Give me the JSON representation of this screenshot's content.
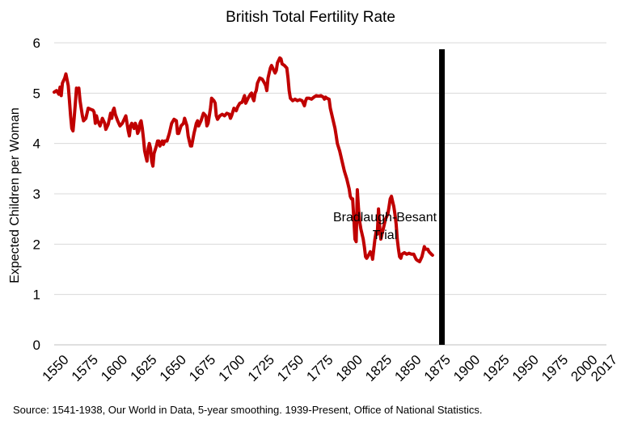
{
  "chart_data": {
    "type": "line",
    "title": "British Total Fertility Rate",
    "xlabel": "",
    "ylabel": "Expected Children per Woman",
    "xlim": [
      1547,
      2017
    ],
    "ylim": [
      0,
      6
    ],
    "grid": "horizontal",
    "x_ticks": [
      "1550",
      "1575",
      "1600",
      "1625",
      "1650",
      "1675",
      "1700",
      "1725",
      "1750",
      "1775",
      "1800",
      "1825",
      "1850",
      "1875",
      "1900",
      "1925",
      "1950",
      "1975",
      "2000",
      "2017"
    ],
    "y_ticks": [
      "0",
      "1",
      "2",
      "3",
      "4",
      "5",
      "6"
    ],
    "series": [
      {
        "color": "#c00000",
        "points": [
          [
            1547,
            5.02
          ],
          [
            1549,
            5.05
          ],
          [
            1551,
            4.98
          ],
          [
            1552,
            5.12
          ],
          [
            1553,
            4.95
          ],
          [
            1554,
            5.2
          ],
          [
            1556,
            5.3
          ],
          [
            1557,
            5.38
          ],
          [
            1559,
            5.15
          ],
          [
            1560,
            4.85
          ],
          [
            1561,
            4.55
          ],
          [
            1562,
            4.3
          ],
          [
            1563,
            4.25
          ],
          [
            1564,
            4.5
          ],
          [
            1565,
            4.8
          ],
          [
            1566,
            5.1
          ],
          [
            1567,
            5.05
          ],
          [
            1568,
            5.1
          ],
          [
            1569,
            4.85
          ],
          [
            1570,
            4.7
          ],
          [
            1571,
            4.55
          ],
          [
            1572,
            4.45
          ],
          [
            1574,
            4.5
          ],
          [
            1576,
            4.7
          ],
          [
            1578,
            4.68
          ],
          [
            1580,
            4.66
          ],
          [
            1581,
            4.62
          ],
          [
            1582,
            4.4
          ],
          [
            1583,
            4.55
          ],
          [
            1584,
            4.45
          ],
          [
            1586,
            4.35
          ],
          [
            1588,
            4.5
          ],
          [
            1590,
            4.4
          ],
          [
            1591,
            4.28
          ],
          [
            1593,
            4.38
          ],
          [
            1595,
            4.6
          ],
          [
            1596,
            4.5
          ],
          [
            1597,
            4.65
          ],
          [
            1598,
            4.7
          ],
          [
            1599,
            4.58
          ],
          [
            1601,
            4.45
          ],
          [
            1603,
            4.35
          ],
          [
            1605,
            4.4
          ],
          [
            1607,
            4.5
          ],
          [
            1608,
            4.55
          ],
          [
            1609,
            4.4
          ],
          [
            1610,
            4.25
          ],
          [
            1611,
            4.15
          ],
          [
            1612,
            4.35
          ],
          [
            1613,
            4.4
          ],
          [
            1615,
            4.3
          ],
          [
            1616,
            4.4
          ],
          [
            1617,
            4.35
          ],
          [
            1618,
            4.2
          ],
          [
            1619,
            4.25
          ],
          [
            1620,
            4.4
          ],
          [
            1621,
            4.45
          ],
          [
            1622,
            4.3
          ],
          [
            1623,
            4.1
          ],
          [
            1624,
            3.85
          ],
          [
            1625,
            3.75
          ],
          [
            1626,
            3.65
          ],
          [
            1627,
            3.9
          ],
          [
            1628,
            4.0
          ],
          [
            1629,
            3.9
          ],
          [
            1630,
            3.65
          ],
          [
            1631,
            3.55
          ],
          [
            1632,
            3.8
          ],
          [
            1634,
            3.95
          ],
          [
            1635,
            4.05
          ],
          [
            1636,
            4.05
          ],
          [
            1637,
            3.95
          ],
          [
            1638,
            4.0
          ],
          [
            1639,
            4.05
          ],
          [
            1640,
            3.98
          ],
          [
            1641,
            4.05
          ],
          [
            1643,
            4.05
          ],
          [
            1645,
            4.2
          ],
          [
            1647,
            4.4
          ],
          [
            1649,
            4.48
          ],
          [
            1651,
            4.45
          ],
          [
            1652,
            4.2
          ],
          [
            1653,
            4.2
          ],
          [
            1655,
            4.35
          ],
          [
            1657,
            4.4
          ],
          [
            1658,
            4.5
          ],
          [
            1660,
            4.35
          ],
          [
            1661,
            4.15
          ],
          [
            1662,
            4.05
          ],
          [
            1663,
            3.95
          ],
          [
            1664,
            3.95
          ],
          [
            1666,
            4.2
          ],
          [
            1667,
            4.3
          ],
          [
            1668,
            4.4
          ],
          [
            1669,
            4.45
          ],
          [
            1670,
            4.35
          ],
          [
            1672,
            4.45
          ],
          [
            1674,
            4.6
          ],
          [
            1676,
            4.55
          ],
          [
            1677,
            4.35
          ],
          [
            1678,
            4.4
          ],
          [
            1680,
            4.7
          ],
          [
            1681,
            4.9
          ],
          [
            1683,
            4.85
          ],
          [
            1684,
            4.8
          ],
          [
            1685,
            4.55
          ],
          [
            1686,
            4.48
          ],
          [
            1688,
            4.55
          ],
          [
            1690,
            4.58
          ],
          [
            1692,
            4.55
          ],
          [
            1694,
            4.6
          ],
          [
            1696,
            4.58
          ],
          [
            1697,
            4.5
          ],
          [
            1698,
            4.55
          ],
          [
            1700,
            4.7
          ],
          [
            1702,
            4.65
          ],
          [
            1703,
            4.72
          ],
          [
            1705,
            4.8
          ],
          [
            1707,
            4.82
          ],
          [
            1709,
            4.95
          ],
          [
            1710,
            4.8
          ],
          [
            1712,
            4.9
          ],
          [
            1714,
            4.98
          ],
          [
            1715,
            5.0
          ],
          [
            1716,
            4.9
          ],
          [
            1717,
            4.85
          ],
          [
            1718,
            5.0
          ],
          [
            1719,
            5.05
          ],
          [
            1720,
            5.2
          ],
          [
            1722,
            5.3
          ],
          [
            1724,
            5.28
          ],
          [
            1726,
            5.2
          ],
          [
            1727,
            5.15
          ],
          [
            1728,
            5.05
          ],
          [
            1729,
            5.3
          ],
          [
            1730,
            5.4
          ],
          [
            1731,
            5.5
          ],
          [
            1732,
            5.55
          ],
          [
            1733,
            5.5
          ],
          [
            1734,
            5.45
          ],
          [
            1735,
            5.4
          ],
          [
            1736,
            5.45
          ],
          [
            1737,
            5.6
          ],
          [
            1738,
            5.65
          ],
          [
            1739,
            5.7
          ],
          [
            1740,
            5.68
          ],
          [
            1741,
            5.58
          ],
          [
            1743,
            5.55
          ],
          [
            1745,
            5.5
          ],
          [
            1746,
            5.3
          ],
          [
            1747,
            5.05
          ],
          [
            1748,
            4.9
          ],
          [
            1750,
            4.85
          ],
          [
            1752,
            4.88
          ],
          [
            1754,
            4.85
          ],
          [
            1756,
            4.87
          ],
          [
            1758,
            4.85
          ],
          [
            1759,
            4.8
          ],
          [
            1760,
            4.75
          ],
          [
            1761,
            4.85
          ],
          [
            1762,
            4.9
          ],
          [
            1764,
            4.9
          ],
          [
            1766,
            4.88
          ],
          [
            1768,
            4.92
          ],
          [
            1770,
            4.95
          ],
          [
            1772,
            4.94
          ],
          [
            1774,
            4.95
          ],
          [
            1776,
            4.92
          ],
          [
            1777,
            4.88
          ],
          [
            1778,
            4.92
          ],
          [
            1779,
            4.9
          ],
          [
            1781,
            4.88
          ],
          [
            1782,
            4.7
          ],
          [
            1784,
            4.5
          ],
          [
            1786,
            4.3
          ],
          [
            1787,
            4.15
          ],
          [
            1788,
            4.0
          ],
          [
            1790,
            3.85
          ],
          [
            1792,
            3.65
          ],
          [
            1794,
            3.45
          ],
          [
            1796,
            3.3
          ],
          [
            1797,
            3.2
          ],
          [
            1798,
            3.1
          ],
          [
            1799,
            2.95
          ],
          [
            1800,
            2.9
          ],
          [
            1801,
            2.9
          ],
          [
            1802,
            2.5
          ],
          [
            1803,
            2.1
          ],
          [
            1804,
            2.05
          ],
          [
            1805,
            3.08
          ],
          [
            1806,
            2.7
          ],
          [
            1807,
            2.45
          ],
          [
            1808,
            2.3
          ],
          [
            1810,
            2.1
          ],
          [
            1811,
            1.95
          ],
          [
            1812,
            1.75
          ],
          [
            1813,
            1.72
          ],
          [
            1815,
            1.8
          ],
          [
            1816,
            1.85
          ],
          [
            1817,
            1.82
          ],
          [
            1818,
            1.7
          ],
          [
            1820,
            2.1
          ],
          [
            1821,
            2.25
          ],
          [
            1822,
            2.2
          ],
          [
            1823,
            2.7
          ],
          [
            1824,
            2.35
          ],
          [
            1825,
            2.1
          ],
          [
            1826,
            2.2
          ],
          [
            1827,
            2.3
          ],
          [
            1829,
            2.5
          ],
          [
            1831,
            2.6
          ],
          [
            1832,
            2.75
          ],
          [
            1833,
            2.9
          ],
          [
            1834,
            2.95
          ],
          [
            1835,
            2.85
          ],
          [
            1836,
            2.75
          ],
          [
            1837,
            2.6
          ],
          [
            1838,
            2.4
          ],
          [
            1839,
            2.1
          ],
          [
            1840,
            1.9
          ],
          [
            1841,
            1.75
          ],
          [
            1842,
            1.72
          ],
          [
            1843,
            1.8
          ],
          [
            1845,
            1.83
          ],
          [
            1847,
            1.8
          ],
          [
            1849,
            1.82
          ],
          [
            1851,
            1.8
          ],
          [
            1853,
            1.8
          ],
          [
            1854,
            1.75
          ],
          [
            1855,
            1.7
          ],
          [
            1856,
            1.68
          ],
          [
            1858,
            1.65
          ],
          [
            1860,
            1.75
          ],
          [
            1861,
            1.85
          ],
          [
            1862,
            1.95
          ],
          [
            1863,
            1.9
          ],
          [
            1865,
            1.9
          ],
          [
            1866,
            1.85
          ],
          [
            1868,
            1.8
          ],
          [
            1869,
            1.78
          ]
        ]
      }
    ],
    "annotations": [
      {
        "text_line1": "Bradlaugh-Besant",
        "text_line2": "Trial",
        "x": 1877
      }
    ]
  },
  "source_note": "Source: 1541-1938, Our World in Data, 5-year smoothing. 1939-Present, Office of National Statistics.",
  "colors": {
    "line": "#c00000",
    "grid": "#d9d9d9",
    "marker": "#000000"
  }
}
